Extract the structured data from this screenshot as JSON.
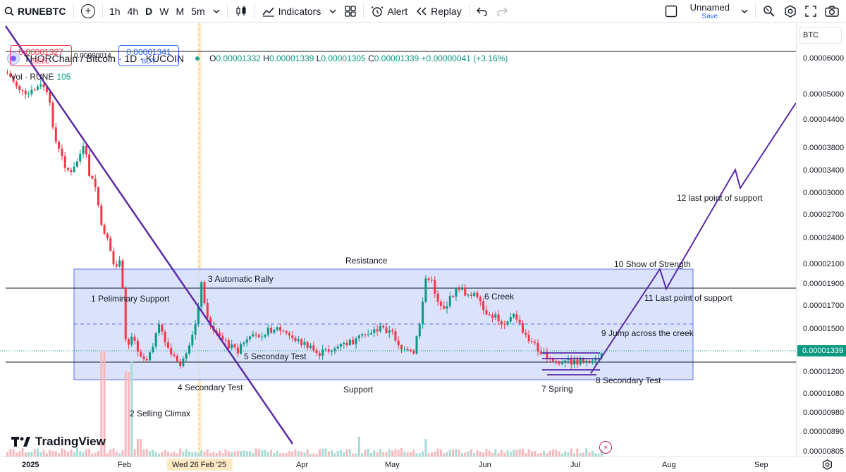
{
  "toolbar": {
    "symbol": "RUNEBTC",
    "intervals": [
      "1h",
      "4h",
      "D",
      "W",
      "M",
      "5m"
    ],
    "active_interval": "D",
    "indicators_label": "Indicators",
    "alert_label": "Alert",
    "replay_label": "Replay",
    "layout_name": "Unnamed",
    "save_label": "Save"
  },
  "legend": {
    "title": "THORChain / Bitcoin · 1D · KUCOIN",
    "o_key": "O",
    "o": "0.00001332",
    "h_key": "H",
    "h": "0.00001339",
    "l_key": "L",
    "l": "0.00001305",
    "c_key": "C",
    "c": "0.00001339",
    "change": "+0.00000041 (+3.16%)",
    "sell_price": "0.00001327",
    "sell_label": "SELL",
    "spread": "0.00000014",
    "buy_price": "0.00001341",
    "buy_label": "BUY",
    "vol_label": "Vol · RUNE",
    "vol_value": "105"
  },
  "price_axis": {
    "currency": "BTC",
    "labels": [
      "0.00006000",
      "0.00005000",
      "0.00004400",
      "0.00003800",
      "0.00003400",
      "0.00003000",
      "0.00002700",
      "0.00002400",
      "0.00002100",
      "0.00001900",
      "0.00001700",
      "0.00001500",
      "0.00001200",
      "0.00001080",
      "0.00000980",
      "0.00000890",
      "0.00000805"
    ],
    "current": "0.00001339"
  },
  "time_axis": {
    "labels": [
      "2025",
      "Feb",
      "Apr",
      "May",
      "Jun",
      "Jul",
      "Aug",
      "Sep"
    ],
    "crosshair": "Wed 26 Feb '25"
  },
  "annotations": {
    "resistance": "Resistance",
    "support": "Support",
    "a1": "1 Peliminary Support",
    "a2": "2 Selling Climax",
    "a3": "3 Automatic Rally",
    "a4": "4 Secondary Test",
    "a5": "5 Seconday Test",
    "a6": "6 Creek",
    "a7": "7 Spring",
    "a8": "8 Secondary Test",
    "a9": "9 Jump across the creek",
    "a10": "10 Show of Strength",
    "a11": "11 Last point of support",
    "a12": "12 last point of support"
  },
  "branding": {
    "logo_text": "TradingView"
  },
  "colors": {
    "up": "#089981",
    "down": "#f23645",
    "range_fill": "#d5defc",
    "range_border": "#5b72f0",
    "trendline": "#5b2aa6"
  }
}
